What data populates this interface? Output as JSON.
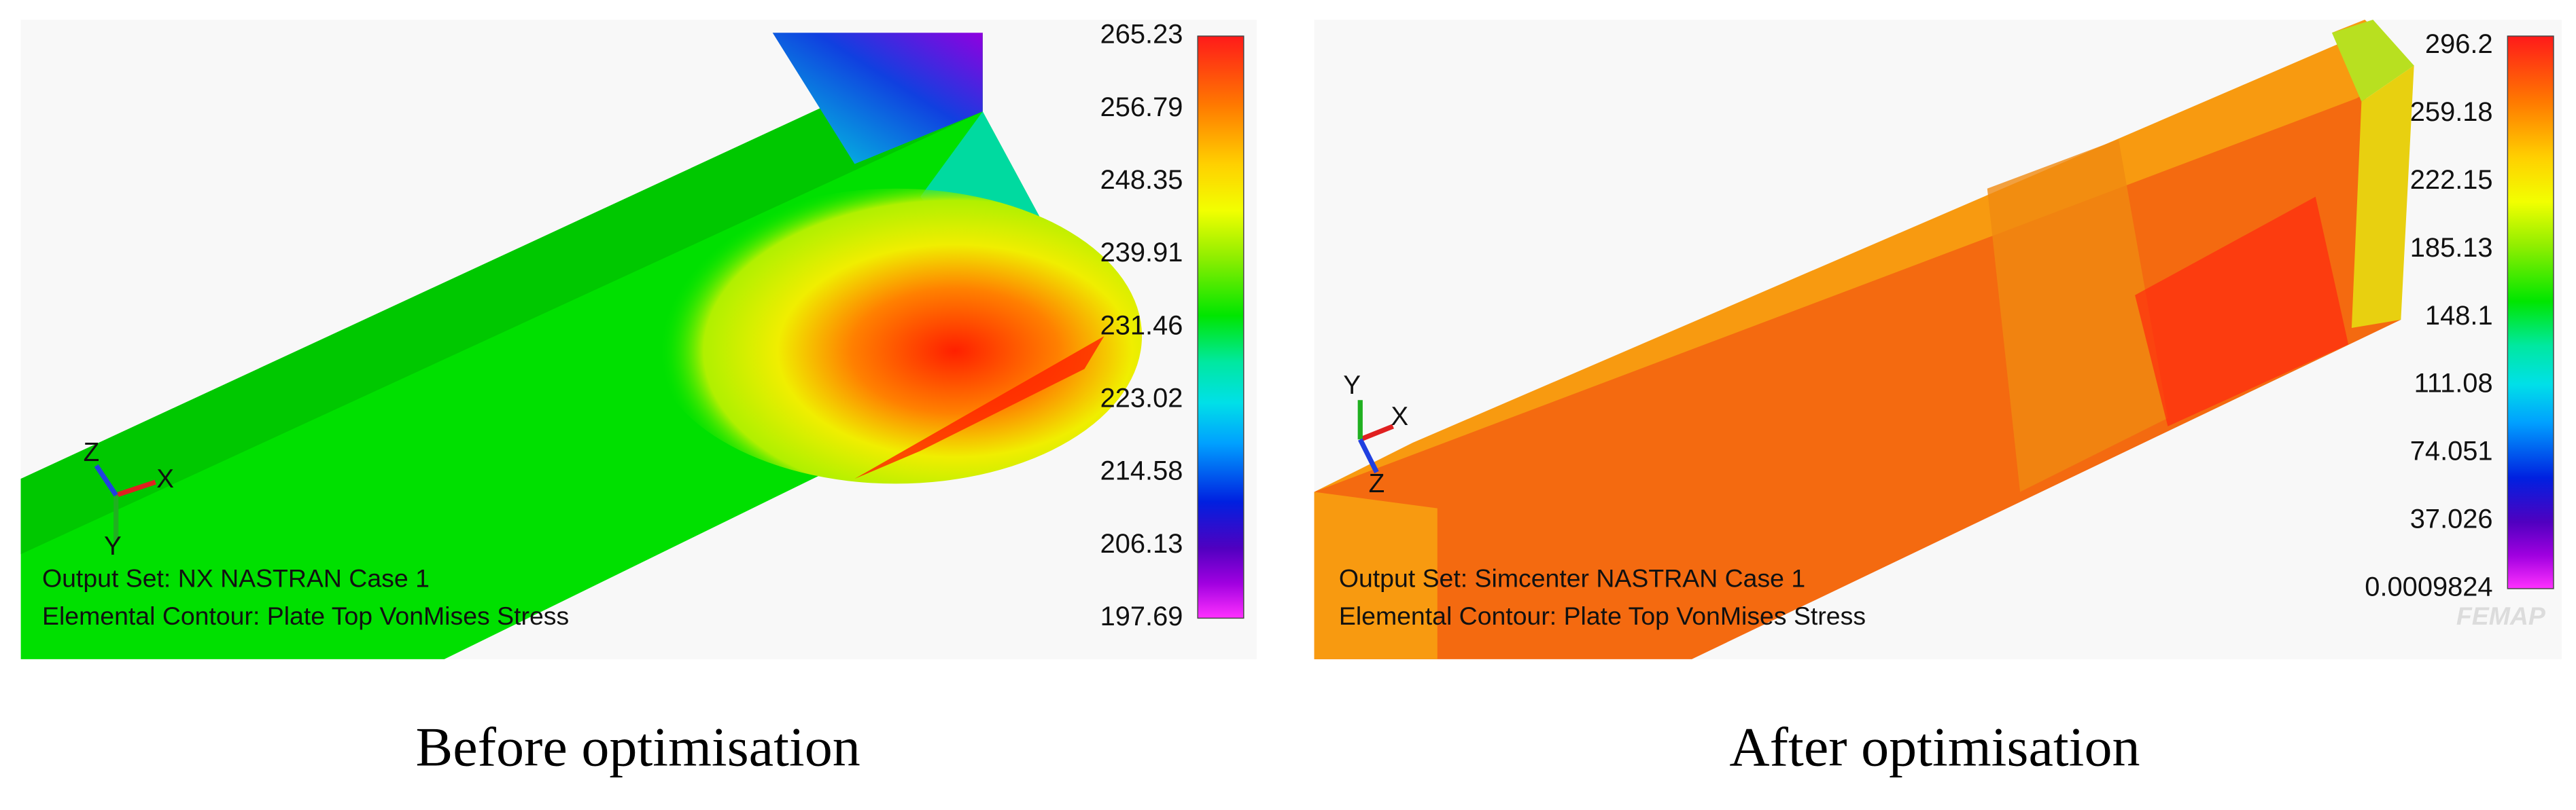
{
  "panels": [
    {
      "legend": [
        "265.23",
        "256.79",
        "248.35",
        "239.91",
        "231.46",
        "223.02",
        "214.58",
        "206.13",
        "197.69"
      ],
      "output_set": "Output Set: NX NASTRAN Case 1",
      "contour": "Elemental Contour: Plate Top VonMises Stress",
      "triad": [
        "X",
        "Y",
        "Z"
      ],
      "caption": "Before optimisation"
    },
    {
      "legend": [
        "296.2",
        "259.18",
        "222.15",
        "185.13",
        "148.1",
        "111.08",
        "74.051",
        "37.026",
        "0.0009824"
      ],
      "output_set": "Output Set: Simcenter NASTRAN Case 1",
      "contour": "Elemental Contour: Plate Top VonMises Stress",
      "triad": [
        "X",
        "Y",
        "Z"
      ],
      "caption": "After optimisation",
      "watermark": "FEMAP"
    }
  ]
}
